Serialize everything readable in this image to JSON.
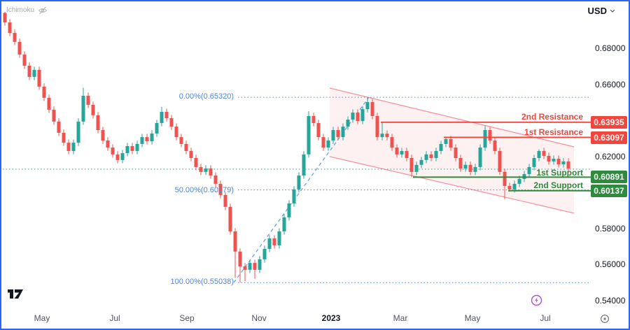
{
  "header": {
    "indicator_label": "Ichimoku",
    "currency_label": "USD"
  },
  "chart_data": {
    "type": "candlestick",
    "ylim": [
      0.538,
      0.706
    ],
    "price_axis": {
      "ticks": [
        {
          "label": "0.68000",
          "value": 0.68
        },
        {
          "label": "0.66000",
          "value": 0.66
        },
        {
          "label": "0.62000",
          "value": 0.62
        },
        {
          "label": "0.58000",
          "value": 0.58
        },
        {
          "label": "0.56000",
          "value": 0.56
        },
        {
          "label": "0.54000",
          "value": 0.54
        }
      ]
    },
    "time_axis": {
      "labels": [
        {
          "text": "May"
        },
        {
          "text": "Jul"
        },
        {
          "text": "Sep"
        },
        {
          "text": "Nov"
        },
        {
          "text": "2023"
        },
        {
          "text": "Mar"
        },
        {
          "text": "May"
        },
        {
          "text": "Jul"
        }
      ]
    },
    "candles": {
      "x_start": 5,
      "x_step": 7,
      "first_open": 0.7,
      "default_wick": 0.0018,
      "closes": [
        0.6947,
        0.6889,
        0.6839,
        0.6769,
        0.6707,
        0.6645,
        0.6684,
        0.6591,
        0.6529,
        0.6463,
        0.6397,
        0.6335,
        0.628,
        0.6234,
        0.628,
        0.6397,
        0.654,
        0.649,
        0.6432,
        0.635,
        0.6292,
        0.6253,
        0.6215,
        0.6184,
        0.6222,
        0.6261,
        0.6234,
        0.6273,
        0.6311,
        0.6288,
        0.6331,
        0.6389,
        0.6451,
        0.6416,
        0.6369,
        0.6311,
        0.6273,
        0.6234,
        0.6195,
        0.6145,
        0.6118,
        0.6137,
        0.6098,
        0.6052,
        0.599,
        0.5924,
        0.5788,
        0.5676,
        0.5594,
        0.5575,
        0.5613,
        0.5575,
        0.5633,
        0.5691,
        0.5749,
        0.5711,
        0.5788,
        0.5866,
        0.5943,
        0.6021,
        0.6098,
        0.6215,
        0.6428,
        0.6389,
        0.6311,
        0.6253,
        0.6292,
        0.635,
        0.6311,
        0.6369,
        0.6408,
        0.6447,
        0.64,
        0.6466,
        0.6505,
        0.6428,
        0.6311,
        0.633,
        0.6311,
        0.6253,
        0.6215,
        0.6234,
        0.6195,
        0.6118,
        0.6157,
        0.6184,
        0.6215,
        0.6195,
        0.6234,
        0.6273,
        0.63,
        0.6253,
        0.6195,
        0.6137,
        0.6157,
        0.6118,
        0.6145,
        0.6253,
        0.635,
        0.6292,
        0.6234,
        0.6118,
        0.604,
        0.6021,
        0.6052,
        0.6079,
        0.6106,
        0.6145,
        0.6195,
        0.6234,
        0.6207,
        0.6176,
        0.6191,
        0.616,
        0.6176,
        0.6137
      ],
      "wick_overrides": {
        "0": {
          "high": 0.7006
        },
        "16": {
          "high": 0.6585
        },
        "32": {
          "high": 0.6479
        },
        "47": {
          "low": 0.553
        },
        "48": {
          "low": 0.5504
        },
        "49": {
          "low": 0.5512
        },
        "51": {
          "low": 0.5525
        },
        "62": {
          "high": 0.6455
        },
        "74": {
          "high": 0.6532
        },
        "77": {
          "high": 0.63935
        },
        "83": {
          "low": 0.60891
        },
        "90": {
          "high": 0.63097
        },
        "98": {
          "high": 0.6375
        },
        "102": {
          "low": 0.5966
        },
        "103": {
          "low": 0.6008
        },
        "109": {
          "high": 0.6243
        }
      }
    },
    "levels": {
      "resistance": [
        {
          "name": "2nd Resistance",
          "price_label": "0.63935",
          "value": 0.63935,
          "x_start": 542
        },
        {
          "name": "1st Resistance",
          "price_label": "0.63097",
          "value": 0.63097,
          "x_start": 632
        }
      ],
      "support": [
        {
          "name": "1st Support",
          "price_label": "0.60891",
          "value": 0.60891,
          "x_start": 588
        },
        {
          "name": "2nd Support",
          "price_label": "0.60137",
          "value": 0.60137,
          "x_start": 724
        }
      ]
    },
    "fibonacci": {
      "levels": [
        {
          "label": "0.00%(0.65320)",
          "value": 0.6532
        },
        {
          "label": "50.00%(0.60179)",
          "value": 0.60179
        },
        {
          "label": "100.00%(0.55038)",
          "value": 0.55038
        }
      ],
      "line_x_start": 338,
      "line_x_end": 841,
      "trendline": {
        "x1": 332,
        "value1": 0.5504,
        "x2": 525,
        "value2": 0.6532
      }
    },
    "channel": {
      "x_left": 469,
      "x_right": 818,
      "upper_left": 0.6583,
      "upper_right": 0.6257,
      "lower_left": 0.6203,
      "lower_right": 0.5889
    },
    "current_price": {
      "value": 0.6133
    },
    "colors": {
      "up": "#26a69a",
      "down": "#ef5350",
      "resistance": "#f1453d",
      "support": "#2e8a3c",
      "fib": "#4f86d8",
      "trendline": "#6ea2e5",
      "channel_stroke": "rgba(242,54,69,0.55)",
      "channel_fill": "rgba(242,54,69,0.07)",
      "current": "#2aa39a"
    }
  }
}
